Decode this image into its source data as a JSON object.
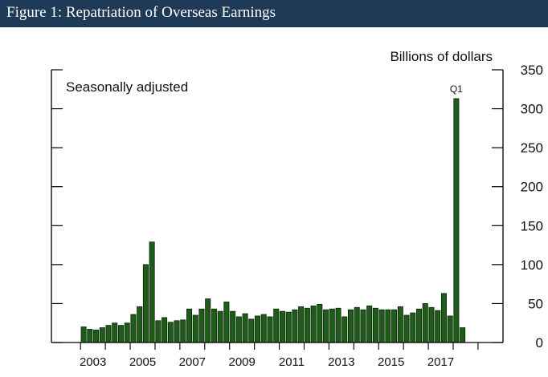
{
  "figure": {
    "title": "Figure 1: Repatriation of Overseas Earnings"
  },
  "colors": {
    "header": "#1f3a57",
    "bar_fill": "#1f5c1a",
    "bar_edge": "#0a2406"
  },
  "chart_data": {
    "type": "bar",
    "title": "Figure 1: Repatriation of Overseas Earnings",
    "ylabel": "Billions of dollars",
    "annotation": "Seasonally adjusted",
    "peak_label": "Q1",
    "ylim": [
      0,
      350
    ],
    "y_ticks": [
      0,
      50,
      100,
      150,
      200,
      250,
      300,
      350
    ],
    "x_ticks": [
      "2003",
      "2005",
      "2007",
      "2009",
      "2011",
      "2013",
      "2015",
      "2017"
    ],
    "start_period": "2003 Q1",
    "frequency": "quarterly",
    "values": [
      20,
      17,
      16,
      19,
      22,
      25,
      22,
      25,
      36,
      46,
      100,
      129,
      28,
      32,
      26,
      28,
      29,
      43,
      35,
      43,
      56,
      43,
      40,
      52,
      40,
      33,
      37,
      30,
      34,
      36,
      33,
      43,
      40,
      39,
      42,
      46,
      44,
      47,
      49,
      42,
      43,
      44,
      33,
      42,
      45,
      42,
      47,
      44,
      42,
      42,
      42,
      46,
      35,
      38,
      43,
      50,
      45,
      41,
      63,
      34,
      313,
      19
    ]
  }
}
